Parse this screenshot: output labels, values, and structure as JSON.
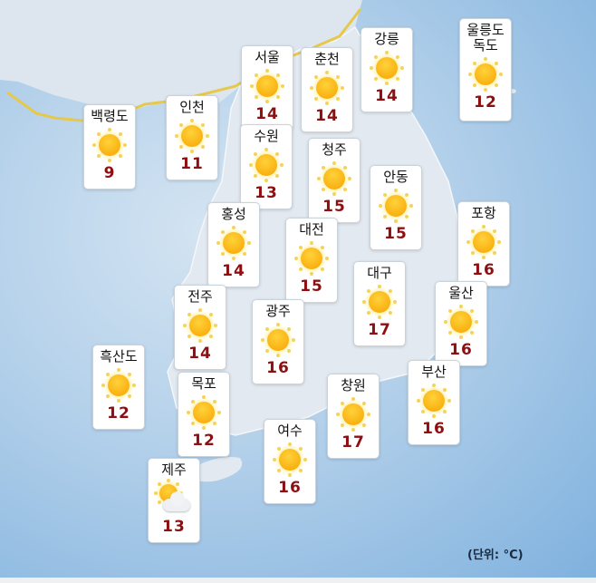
{
  "unit_label": "(단위: °C)",
  "colors": {
    "temperature": "#8e0f12",
    "sea": "#9fc4e6",
    "land": "#dfe6ee",
    "border_line": "#e6c84a"
  },
  "stations": [
    {
      "name": "백령도",
      "temp": "9",
      "icon": "sunny-icon"
    },
    {
      "name": "인천",
      "temp": "11",
      "icon": "sunny-icon"
    },
    {
      "name": "서울",
      "temp": "14",
      "icon": "sunny-icon"
    },
    {
      "name": "수원",
      "temp": "13",
      "icon": "sunny-icon"
    },
    {
      "name": "춘천",
      "temp": "14",
      "icon": "sunny-icon"
    },
    {
      "name": "강릉",
      "temp": "14",
      "icon": "sunny-icon"
    },
    {
      "name": "울릉도\n독도",
      "temp": "12",
      "icon": "sunny-icon"
    },
    {
      "name": "청주",
      "temp": "15",
      "icon": "sunny-icon"
    },
    {
      "name": "안동",
      "temp": "15",
      "icon": "sunny-icon"
    },
    {
      "name": "홍성",
      "temp": "14",
      "icon": "sunny-icon"
    },
    {
      "name": "대전",
      "temp": "15",
      "icon": "sunny-icon"
    },
    {
      "name": "포항",
      "temp": "16",
      "icon": "sunny-icon"
    },
    {
      "name": "대구",
      "temp": "17",
      "icon": "sunny-icon"
    },
    {
      "name": "울산",
      "temp": "16",
      "icon": "sunny-icon"
    },
    {
      "name": "전주",
      "temp": "14",
      "icon": "sunny-icon"
    },
    {
      "name": "광주",
      "temp": "16",
      "icon": "sunny-icon"
    },
    {
      "name": "흑산도",
      "temp": "12",
      "icon": "sunny-icon"
    },
    {
      "name": "목포",
      "temp": "12",
      "icon": "sunny-icon"
    },
    {
      "name": "부산",
      "temp": "16",
      "icon": "sunny-icon"
    },
    {
      "name": "창원",
      "temp": "17",
      "icon": "sunny-icon"
    },
    {
      "name": "여수",
      "temp": "16",
      "icon": "sunny-icon"
    },
    {
      "name": "제주",
      "temp": "13",
      "icon": "partly-cloudy-icon"
    }
  ]
}
